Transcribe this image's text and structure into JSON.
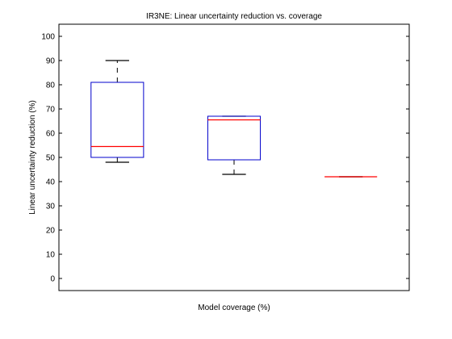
{
  "chart_data": {
    "type": "box",
    "title": "IR3NE: Linear uncertainty reduction vs. coverage",
    "xlabel": "Model coverage (%)",
    "ylabel": "Linear uncertainty reduction (%)",
    "ylim": [
      -5,
      105
    ],
    "yticks": [
      0,
      10,
      20,
      30,
      40,
      50,
      60,
      70,
      80,
      90,
      100
    ],
    "grid": false,
    "boxes": [
      {
        "whisker_low": 48,
        "q1": 50,
        "median": 54.5,
        "q3": 81,
        "whisker_high": 90
      },
      {
        "whisker_low": 43,
        "q1": 49,
        "median": 65.5,
        "q3": 67,
        "whisker_high": 67
      },
      {
        "whisker_low": 42,
        "q1": 42,
        "median": 42,
        "q3": 42,
        "whisker_high": 42
      }
    ],
    "colors": {
      "box": "#0000cc",
      "median": "#ff0000",
      "whisker": "#000000",
      "axes": "#000000"
    }
  }
}
